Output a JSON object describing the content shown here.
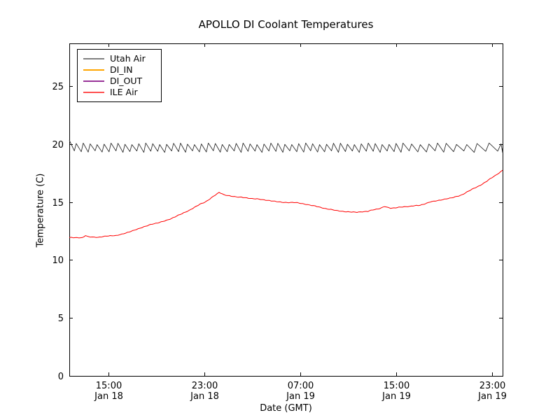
{
  "chart_data": {
    "type": "line",
    "title": "APOLLO DI Coolant Temperatures",
    "xlabel": "Date (GMT)",
    "ylabel": "Temperature (C)",
    "grid": false,
    "legend_position": "upper left",
    "ylim": [
      0,
      28.7
    ],
    "xlim_hours_from_start": [
      0,
      36.15
    ],
    "y_ticks": [
      0,
      5,
      10,
      15,
      20,
      25
    ],
    "y_tick_labels": [
      "0",
      "5",
      "10",
      "15",
      "20",
      "25"
    ],
    "x_ticks": [
      {
        "t": 3.25,
        "time": "15:00",
        "date": "Jan 18"
      },
      {
        "t": 11.25,
        "time": "23:00",
        "date": "Jan 18"
      },
      {
        "t": 19.25,
        "time": "07:00",
        "date": "Jan 19"
      },
      {
        "t": 27.25,
        "time": "15:00",
        "date": "Jan 19"
      },
      {
        "t": 35.25,
        "time": "23:00",
        "date": "Jan 19"
      }
    ],
    "series": [
      {
        "name": "Utah Air",
        "color": "#808080",
        "plot_color": "#2f2f2f",
        "shape": "sawtooth",
        "sawtooth": {
          "start_value": 20.35,
          "trough": 19.36,
          "peak": 20.03,
          "variation": 0.07,
          "trough_fraction": 0.72,
          "period_segments": [
            {
              "from": 0,
              "to": 27.5,
              "period": 0.58
            },
            {
              "from": 27.5,
              "to": 31.0,
              "period": 0.72
            },
            {
              "from": 31.0,
              "to": 34.0,
              "period": 0.86
            },
            {
              "from": 34.0,
              "to": 36.15,
              "period": 1.0
            }
          ]
        }
      },
      {
        "name": "DI_IN",
        "color": "#ffa500",
        "plot_color": "#ffa500",
        "shape": "points",
        "points": []
      },
      {
        "name": "DI_OUT",
        "color": "#993399",
        "plot_color": "#993399",
        "shape": "points",
        "points": []
      },
      {
        "name": "ILE Air",
        "color": "#ff5050",
        "plot_color": "#ff0000",
        "shape": "points",
        "noise_amplitude": 0.03,
        "points": [
          [
            0.0,
            11.95
          ],
          [
            0.5,
            11.9
          ],
          [
            1.1,
            11.9
          ],
          [
            1.35,
            12.15
          ],
          [
            1.6,
            12.0
          ],
          [
            2.4,
            11.98
          ],
          [
            3.25,
            12.05
          ],
          [
            3.9,
            12.1
          ],
          [
            4.7,
            12.35
          ],
          [
            5.6,
            12.65
          ],
          [
            6.5,
            12.95
          ],
          [
            7.35,
            13.2
          ],
          [
            8.25,
            13.5
          ],
          [
            9.1,
            13.85
          ],
          [
            10.0,
            14.25
          ],
          [
            10.9,
            14.8
          ],
          [
            11.45,
            15.1
          ],
          [
            12.0,
            15.45
          ],
          [
            12.5,
            15.85
          ],
          [
            12.9,
            15.6
          ],
          [
            13.5,
            15.5
          ],
          [
            14.35,
            15.45
          ],
          [
            15.25,
            15.3
          ],
          [
            16.1,
            15.2
          ],
          [
            17.0,
            15.1
          ],
          [
            17.9,
            15.0
          ],
          [
            18.75,
            14.95
          ],
          [
            19.6,
            14.85
          ],
          [
            20.5,
            14.7
          ],
          [
            21.4,
            14.45
          ],
          [
            22.25,
            14.25
          ],
          [
            23.1,
            14.2
          ],
          [
            24.0,
            14.15
          ],
          [
            24.9,
            14.2
          ],
          [
            25.75,
            14.4
          ],
          [
            26.3,
            14.65
          ],
          [
            26.8,
            14.5
          ],
          [
            27.5,
            14.55
          ],
          [
            28.4,
            14.6
          ],
          [
            29.25,
            14.75
          ],
          [
            30.1,
            15.0
          ],
          [
            31.0,
            15.15
          ],
          [
            31.9,
            15.35
          ],
          [
            32.75,
            15.65
          ],
          [
            33.45,
            16.0
          ],
          [
            34.15,
            16.4
          ],
          [
            34.85,
            16.8
          ],
          [
            35.55,
            17.3
          ],
          [
            36.15,
            17.75
          ]
        ]
      }
    ]
  }
}
